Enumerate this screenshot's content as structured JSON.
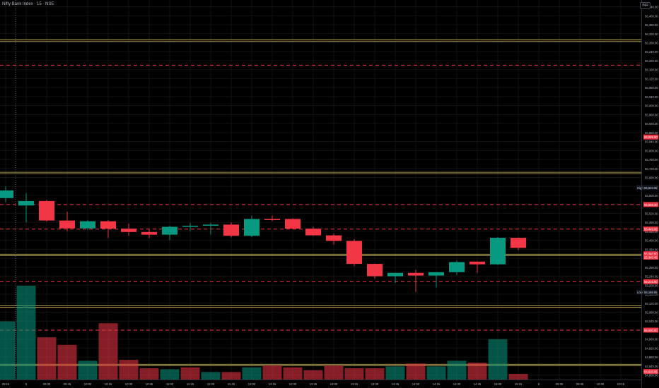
{
  "header": {
    "title": "Nifty Bank Index · 15 · NSE",
    "corner_button": "INR"
  },
  "colors": {
    "background": "#000000",
    "bull": "#089981",
    "bear": "#f23645",
    "level_line": "#c8b458",
    "dashed_line": "#f23645",
    "axis_text": "#b2b5be",
    "grid": "#121212"
  },
  "price_axis": {
    "labels": [
      "56,440.00",
      "56,400.00",
      "56,360.00",
      "56,320.00",
      "56,280.00",
      "56,240.00",
      "56,200.00",
      "56,160.00",
      "56,120.00",
      "56,080.00",
      "56,040.00",
      "56,000.00",
      "55,960.00",
      "55,920.00",
      "55,880.00",
      "55,840.00",
      "55,800.00",
      "55,760.00",
      "55,720.00",
      "55,680.00",
      "55,640.00",
      "55,600.00",
      "55,560.00",
      "55,520.00",
      "55,480.00",
      "55,440.00",
      "55,400.00",
      "55,360.00",
      "55,320.00",
      "55,280.00",
      "55,240.00",
      "55,200.00",
      "55,160.00",
      "55,120.00",
      "55,080.00",
      "55,040.00",
      "55,000.00",
      "54,960.00",
      "54,920.00",
      "54,880.00",
      "54,840.00",
      "54,800.00"
    ]
  },
  "price_tags": [
    {
      "text": "55,859.90",
      "price": 55859.9,
      "color": "#f23645"
    },
    {
      "text": "High",
      "price": 55634.95,
      "color": "#787b86",
      "style": "label-pair",
      "value": "55,634.95"
    },
    {
      "text": "55,559.20",
      "price": 55559.2,
      "color": "#f23645"
    },
    {
      "text": "55,449.95",
      "price": 55449.95,
      "color": "#f23645"
    },
    {
      "text": "55,340.00",
      "price": 55340.0,
      "color": "#f23645"
    },
    {
      "text": "55,340.45",
      "price": 55325.0,
      "color": "#f23645",
      "secondary": true
    },
    {
      "text": "55,215.90",
      "price": 55215.9,
      "color": "#f23645"
    },
    {
      "text": "Low",
      "price": 55168.85,
      "color": "#787b86",
      "style": "label-pair",
      "value": "55,168.85"
    },
    {
      "text": "55,000.00",
      "price": 55000.0,
      "color": "#f23645"
    },
    {
      "text": "54,815.65",
      "price": 54815.65,
      "color": "#f23645"
    }
  ],
  "time_axis": {
    "labels": [
      "09:15",
      "5",
      "09:30",
      "09:45",
      "10:00",
      "10:15",
      "10:30",
      "10:45",
      "11:00",
      "11:15",
      "11:30",
      "11:45",
      "12:00",
      "12:15",
      "12:30",
      "12:45",
      "13:00",
      "13:15",
      "13:30",
      "13:45",
      "14:00",
      "14:15",
      "14:30",
      "14:45",
      "15:00",
      "15:15",
      "6",
      "09:30",
      "09:45",
      "10:00",
      "10:15",
      "10:30"
    ]
  },
  "chart_data": {
    "type": "candlestick",
    "ylim": [
      54780,
      56470
    ],
    "horizontal_levels_solid": [
      56290,
      55700,
      55335,
      55105,
      54845
    ],
    "horizontal_levels_dashed": [
      56180,
      55559.2,
      55449.95,
      55215.9,
      55000.0
    ],
    "candles": [
      {
        "t": "09:15",
        "o": 55588,
        "h": 55640,
        "l": 55570,
        "c": 55622
      },
      {
        "t": "09:30",
        "o": 55555,
        "h": 55610,
        "l": 55480,
        "c": 55575
      },
      {
        "t": "09:45",
        "o": 55575,
        "h": 55580,
        "l": 55483,
        "c": 55488
      },
      {
        "t": "10:00",
        "o": 55488,
        "h": 55527,
        "l": 55440,
        "c": 55453
      },
      {
        "t": "10:15",
        "o": 55453,
        "h": 55490,
        "l": 55445,
        "c": 55485
      },
      {
        "t": "10:30",
        "o": 55485,
        "h": 55490,
        "l": 55410,
        "c": 55452
      },
      {
        "t": "10:45",
        "o": 55452,
        "h": 55475,
        "l": 55420,
        "c": 55437
      },
      {
        "t": "11:00",
        "o": 55437,
        "h": 55450,
        "l": 55410,
        "c": 55425
      },
      {
        "t": "11:15",
        "o": 55425,
        "h": 55465,
        "l": 55400,
        "c": 55460
      },
      {
        "t": "11:30",
        "o": 55460,
        "h": 55478,
        "l": 55440,
        "c": 55465
      },
      {
        "t": "11:45",
        "o": 55465,
        "h": 55478,
        "l": 55425,
        "c": 55470
      },
      {
        "t": "12:00",
        "o": 55470,
        "h": 55480,
        "l": 55413,
        "c": 55420
      },
      {
        "t": "12:15",
        "o": 55420,
        "h": 55510,
        "l": 55415,
        "c": 55495
      },
      {
        "t": "12:30",
        "o": 55495,
        "h": 55510,
        "l": 55485,
        "c": 55490
      },
      {
        "t": "12:45",
        "o": 55495,
        "h": 55498,
        "l": 55450,
        "c": 55452
      },
      {
        "t": "13:00",
        "o": 55452,
        "h": 55460,
        "l": 55420,
        "c": 55422
      },
      {
        "t": "13:15",
        "o": 55422,
        "h": 55430,
        "l": 55380,
        "c": 55397
      },
      {
        "t": "13:30",
        "o": 55397,
        "h": 55405,
        "l": 55285,
        "c": 55295
      },
      {
        "t": "13:45",
        "o": 55295,
        "h": 55296,
        "l": 55230,
        "c": 55240
      },
      {
        "t": "14:00",
        "o": 55240,
        "h": 55255,
        "l": 55210,
        "c": 55255
      },
      {
        "t": "14:15",
        "o": 55255,
        "h": 55268,
        "l": 55170,
        "c": 55243
      },
      {
        "t": "14:30",
        "o": 55243,
        "h": 55258,
        "l": 55190,
        "c": 55258
      },
      {
        "t": "14:45",
        "o": 55258,
        "h": 55310,
        "l": 55245,
        "c": 55303
      },
      {
        "t": "15:00",
        "o": 55305,
        "h": 55306,
        "l": 55255,
        "c": 55293
      },
      {
        "t": "15:15",
        "o": 55293,
        "h": 55415,
        "l": 55290,
        "c": 55411
      },
      {
        "t": "15:30",
        "o": 55411,
        "h": 55412,
        "l": 55356,
        "c": 55366
      }
    ],
    "volume": [
      {
        "t": "09:15",
        "v": 0.62,
        "dir": "up"
      },
      {
        "t": "09:30",
        "v": 1.0,
        "dir": "up"
      },
      {
        "t": "09:45",
        "v": 0.45,
        "dir": "down"
      },
      {
        "t": "10:00",
        "v": 0.37,
        "dir": "down"
      },
      {
        "t": "10:15",
        "v": 0.2,
        "dir": "up"
      },
      {
        "t": "10:30",
        "v": 0.6,
        "dir": "down"
      },
      {
        "t": "10:45",
        "v": 0.21,
        "dir": "down"
      },
      {
        "t": "11:00",
        "v": 0.12,
        "dir": "down"
      },
      {
        "t": "11:15",
        "v": 0.11,
        "dir": "up"
      },
      {
        "t": "11:30",
        "v": 0.13,
        "dir": "down"
      },
      {
        "t": "11:45",
        "v": 0.08,
        "dir": "up"
      },
      {
        "t": "12:00",
        "v": 0.08,
        "dir": "down"
      },
      {
        "t": "12:15",
        "v": 0.13,
        "dir": "up"
      },
      {
        "t": "12:30",
        "v": 0.15,
        "dir": "down"
      },
      {
        "t": "12:45",
        "v": 0.13,
        "dir": "down"
      },
      {
        "t": "13:00",
        "v": 0.1,
        "dir": "down"
      },
      {
        "t": "13:15",
        "v": 0.15,
        "dir": "down"
      },
      {
        "t": "13:30",
        "v": 0.12,
        "dir": "down"
      },
      {
        "t": "13:45",
        "v": 0.12,
        "dir": "down"
      },
      {
        "t": "14:00",
        "v": 0.14,
        "dir": "up"
      },
      {
        "t": "14:15",
        "v": 0.17,
        "dir": "down"
      },
      {
        "t": "14:30",
        "v": 0.14,
        "dir": "up"
      },
      {
        "t": "14:45",
        "v": 0.2,
        "dir": "up"
      },
      {
        "t": "15:00",
        "v": 0.18,
        "dir": "down"
      },
      {
        "t": "15:15",
        "v": 0.43,
        "dir": "up"
      },
      {
        "t": "15:30",
        "v": 0.06,
        "dir": "down"
      }
    ]
  }
}
